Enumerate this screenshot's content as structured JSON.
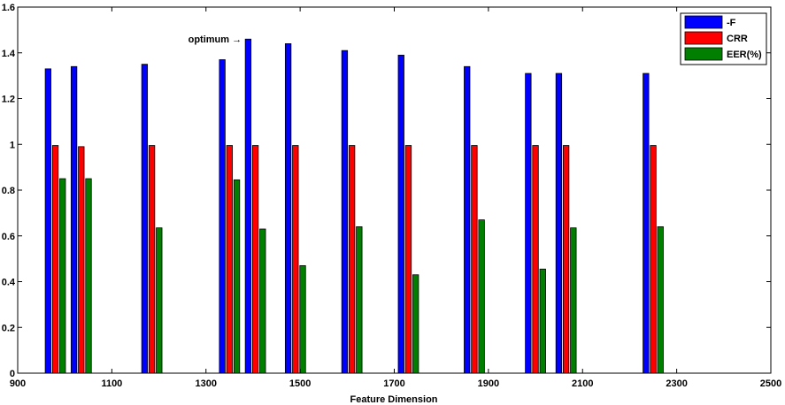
{
  "chart_data": {
    "type": "bar",
    "xlabel": "Feature Dimension",
    "ylabel": "",
    "title": "",
    "xlim": [
      900,
      2500
    ],
    "ylim": [
      0,
      1.6
    ],
    "x_ticks": [
      "900",
      "1100",
      "1300",
      "1500",
      "1700",
      "1900",
      "2100",
      "2300",
      "2500"
    ],
    "y_ticks": [
      "0",
      "0.2",
      "0.4",
      "0.6",
      "0.8",
      "1",
      "1.2",
      "1.4",
      "1.6"
    ],
    "grid": false,
    "legend_position": "top-right",
    "categories": [
      980,
      1035,
      1185,
      1350,
      1405,
      1490,
      1610,
      1730,
      1870,
      2000,
      2065,
      2250
    ],
    "series": [
      {
        "name": "-F",
        "color": "#0000ff",
        "values": [
          1.33,
          1.34,
          1.35,
          1.37,
          1.46,
          1.44,
          1.41,
          1.39,
          1.34,
          1.31,
          1.31,
          1.31
        ]
      },
      {
        "name": "CRR",
        "color": "#ff0000",
        "values": [
          0.995,
          0.99,
          0.995,
          0.995,
          0.995,
          0.995,
          0.995,
          0.995,
          0.995,
          0.995,
          0.995,
          0.995
        ]
      },
      {
        "name": "EER(%)",
        "color": "#007f00",
        "values": [
          0.85,
          0.85,
          0.635,
          0.845,
          0.63,
          0.47,
          0.64,
          0.43,
          0.67,
          0.455,
          0.635,
          0.64
        ]
      }
    ],
    "annotations": [
      {
        "text": "optimum →",
        "x": 1405,
        "y": 1.46
      }
    ]
  }
}
